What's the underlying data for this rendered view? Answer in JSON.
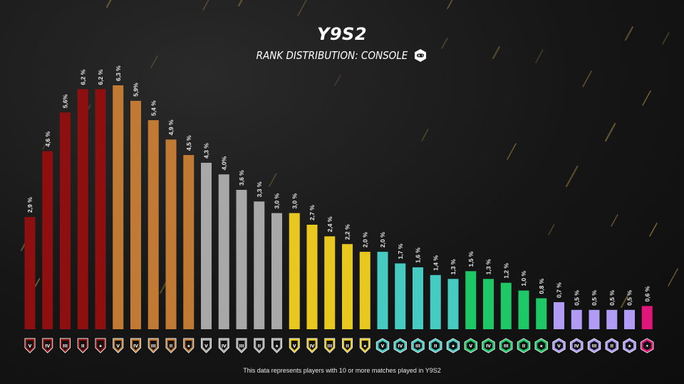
{
  "header": {
    "title": "Y9S2",
    "subtitle": "RANK DISTRIBUTION: CONSOLE"
  },
  "footnote": "This data represents players with 10 or more matches played in Y9S2",
  "colors": {
    "copper": "#8e0f0f",
    "bronze": "#c07a34",
    "silver": "#a8a8a8",
    "gold": "#e8c81e",
    "platinum": "#46cbc2",
    "emerald": "#1ec866",
    "diamond": "#b09cf5",
    "champion": "#e0167a",
    "label": "#e8e8e8"
  },
  "chart_data": {
    "type": "bar",
    "title": "Y9S2",
    "subtitle": "RANK DISTRIBUTION: CONSOLE",
    "ylim": [
      0,
      6.5
    ],
    "grid": false,
    "legend": "none",
    "categories": [
      "Copper V",
      "Copper IV",
      "Copper III",
      "Copper II",
      "Copper I",
      "Bronze V",
      "Bronze IV",
      "Bronze III",
      "Bronze II",
      "Bronze I",
      "Silver V",
      "Silver IV",
      "Silver III",
      "Silver II",
      "Silver I",
      "Gold V",
      "Gold IV",
      "Gold III",
      "Gold II",
      "Gold I",
      "Platinum V",
      "Platinum IV",
      "Platinum III",
      "Platinum II",
      "Platinum I",
      "Emerald V",
      "Emerald IV",
      "Emerald III",
      "Emerald II",
      "Emerald I",
      "Diamond V",
      "Diamond IV",
      "Diamond III",
      "Diamond II",
      "Diamond I",
      "Champion"
    ],
    "tier_of_bar": [
      "copper",
      "copper",
      "copper",
      "copper",
      "copper",
      "bronze",
      "bronze",
      "bronze",
      "bronze",
      "bronze",
      "silver",
      "silver",
      "silver",
      "silver",
      "silver",
      "gold",
      "gold",
      "gold",
      "gold",
      "gold",
      "platinum",
      "platinum",
      "platinum",
      "platinum",
      "platinum",
      "emerald",
      "emerald",
      "emerald",
      "emerald",
      "emerald",
      "diamond",
      "diamond",
      "diamond",
      "diamond",
      "diamond",
      "champion"
    ],
    "division_marks": [
      "V",
      "IV",
      "III",
      "II",
      "★",
      "V",
      "IV",
      "III",
      "II",
      "★",
      "V",
      "IV",
      "III",
      "II",
      "★",
      "V",
      "IV",
      "III",
      "II",
      "★",
      "V",
      "IV",
      "III",
      "II",
      "★",
      "V",
      "IV",
      "III",
      "II",
      "★",
      "V",
      "IV",
      "III",
      "II",
      "★",
      "✦"
    ],
    "values": [
      2.9,
      4.6,
      5.6,
      6.2,
      6.2,
      6.3,
      5.9,
      5.4,
      4.9,
      4.5,
      4.3,
      4.0,
      3.6,
      3.3,
      3.0,
      3.0,
      2.7,
      2.4,
      2.2,
      2.0,
      2.0,
      1.7,
      1.6,
      1.4,
      1.3,
      1.5,
      1.3,
      1.2,
      1.0,
      0.8,
      0.7,
      0.5,
      0.5,
      0.5,
      0.5,
      0.6
    ],
    "value_labels": [
      "2,9 %",
      "4,6 %",
      "5,6%",
      "6,2 %",
      "6,2 %",
      "6,3 %",
      "5,9%",
      "5,4 %",
      "4,9 %",
      "4,5 %",
      "4,3 %",
      "4,0%",
      "3,6 %",
      "3,3 %",
      "3,0 %",
      "3,0 %",
      "2,7 %",
      "2,4 %",
      "2,2 %",
      "2,0 %",
      "2,0 %",
      "1,7 %",
      "1,6 %",
      "1,4 %",
      "1,3 %",
      "1,5 %",
      "1,3 %",
      "1,2 %",
      "1,0 %",
      "0,8 %",
      "0,7 %",
      "0,5 %",
      "0,5 %",
      "0,5 %",
      "0,5 %",
      "0,6 %"
    ]
  }
}
